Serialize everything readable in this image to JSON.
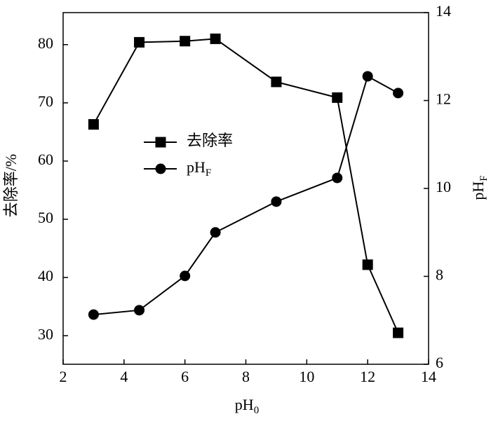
{
  "chart_data": {
    "type": "line",
    "x_label": "pH0",
    "y_label": "去除率/%",
    "y2_label": "pHF",
    "x": [
      3,
      4.5,
      6,
      7,
      9,
      11,
      12,
      13
    ],
    "series": [
      {
        "name": "去除率",
        "color": "#000000",
        "marker": "square",
        "values": [
          66.3,
          80.4,
          80.6,
          81.0,
          73.6,
          70.9,
          42.2,
          30.5
        ]
      },
      {
        "name": "pHF",
        "color": "#000000",
        "marker": "circle",
        "axis": "y2",
        "values": [
          7.13,
          7.23,
          8.01,
          9.0,
          9.7,
          10.24,
          12.55,
          12.17
        ]
      }
    ],
    "xlim": [
      2,
      14
    ],
    "xticks": [
      2,
      4,
      6,
      8,
      10,
      12,
      14
    ],
    "ylim": [
      25.1,
      85.5
    ],
    "yticks": [
      30,
      40,
      50,
      60,
      70,
      80
    ],
    "y2lim": [
      6,
      14
    ],
    "y2ticks": [
      6,
      8,
      10,
      12,
      14
    ]
  }
}
